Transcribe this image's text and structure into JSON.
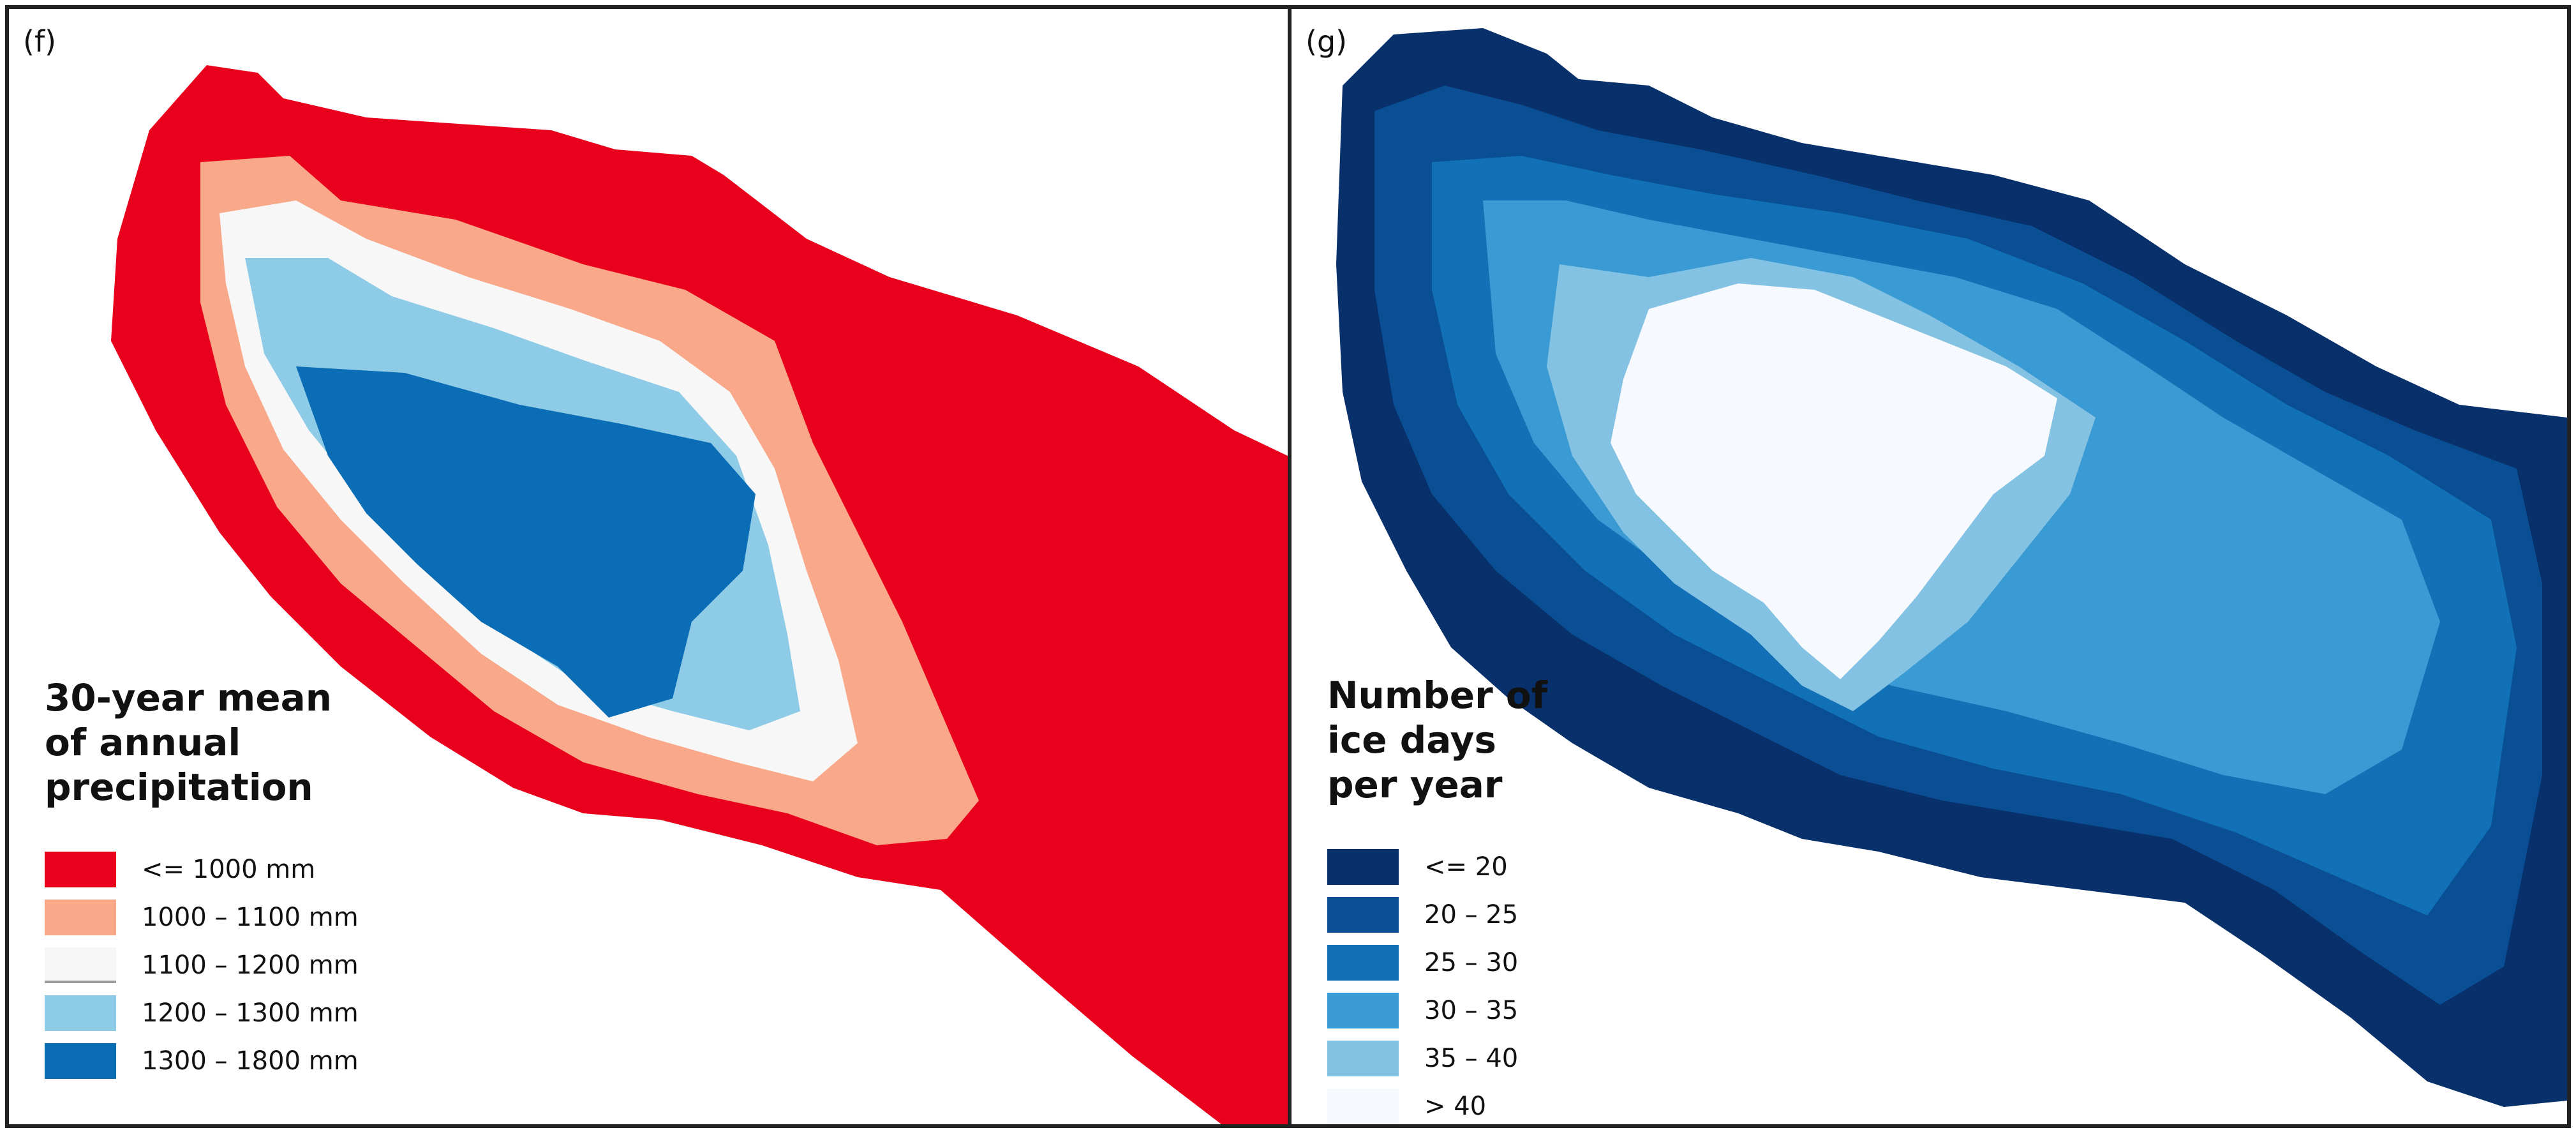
{
  "panel_f": {
    "label": "(f)",
    "legend_title": [
      "30-year mean",
      "of annual",
      "precipitation"
    ],
    "classes": [
      {
        "label": "<= 1000 mm",
        "color": "#e8001c"
      },
      {
        "label": "1000 – 1100 mm",
        "color": "#f9a88a"
      },
      {
        "label": "1100 – 1200 mm",
        "color": "#f7f7f7"
      },
      {
        "label": "1200 – 1300 mm",
        "color": "#8ecbe6"
      },
      {
        "label": "1300 – 1800 mm",
        "color": "#0a6db5"
      }
    ]
  },
  "panel_g": {
    "label": "(g)",
    "legend_title": [
      "Number of",
      "ice days",
      "per year"
    ],
    "classes": [
      {
        "label": "<= 20",
        "color": "#08306b"
      },
      {
        "label": "20 – 25",
        "color": "#0a4f93"
      },
      {
        "label": "25 – 30",
        "color": "#1170b6"
      },
      {
        "label": "30 – 35",
        "color": "#3a9ad3"
      },
      {
        "label": "35 – 40",
        "color": "#84c2e3"
      },
      {
        "label": "> 40",
        "color": "#f6f9fd"
      }
    ]
  }
}
